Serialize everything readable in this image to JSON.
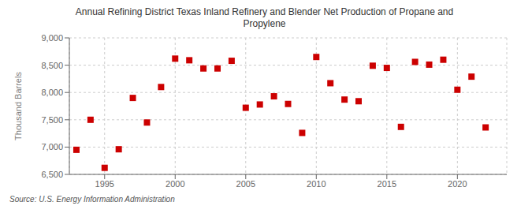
{
  "chart_data": {
    "type": "scatter",
    "title": "Annual Refining District Texas Inland Refinery and Blender Net Production of Propane and\nPropylene",
    "ylabel": "Thousand Barrels",
    "annotation": "Source: U.S. Energy Information Administration",
    "color": "#cc0000",
    "marker": "square",
    "grid": true,
    "x": [
      1993,
      1994,
      1995,
      1996,
      1997,
      1998,
      1999,
      2000,
      2001,
      2002,
      2003,
      2004,
      2005,
      2006,
      2007,
      2008,
      2009,
      2010,
      2011,
      2012,
      2013,
      2014,
      2015,
      2016,
      2017,
      2018,
      2019,
      2020,
      2021,
      2022
    ],
    "values": [
      6950,
      7500,
      6620,
      6960,
      7900,
      7450,
      8100,
      8620,
      8590,
      8440,
      8440,
      8580,
      7720,
      7780,
      7930,
      7790,
      7260,
      8650,
      8170,
      7870,
      7840,
      8490,
      8450,
      7370,
      8560,
      8510,
      8600,
      8050,
      8290,
      7360
    ],
    "xlim": [
      1992.5,
      2023.5
    ],
    "xticks": [
      1995,
      2000,
      2005,
      2010,
      2015,
      2020
    ],
    "ylim": [
      6500,
      9000
    ],
    "yticks": [
      {
        "value": 6500,
        "label": "6,500"
      },
      {
        "value": 7000,
        "label": "7,000"
      },
      {
        "value": 7500,
        "label": "7,500"
      },
      {
        "value": 8000,
        "label": "8,000"
      },
      {
        "value": 8500,
        "label": "8,500"
      },
      {
        "value": 9000,
        "label": "9,000"
      }
    ]
  }
}
